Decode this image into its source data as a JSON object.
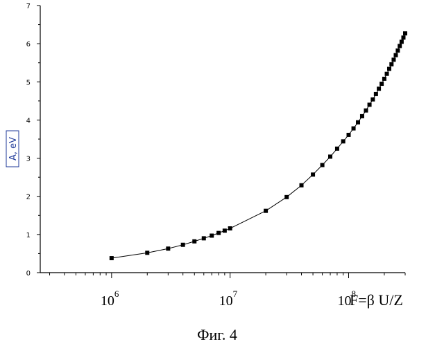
{
  "chart_data": {
    "type": "scatter",
    "xscale": "log",
    "xlim": [
      250000,
      300000000
    ],
    "ylim": [
      0,
      7
    ],
    "yticks": [
      0,
      1,
      2,
      3,
      4,
      5,
      6,
      7
    ],
    "ytick_labels": [
      "0",
      "1",
      "2",
      "3",
      "4",
      "5",
      "6",
      "7"
    ],
    "xticks": [
      {
        "value": 1000000,
        "base": "10",
        "exp": "6"
      },
      {
        "value": 10000000,
        "base": "10",
        "exp": "7"
      },
      {
        "value": 100000000,
        "base": "10",
        "exp": "8"
      }
    ],
    "ylabel": "A, eV",
    "xlabel": "F=β U/Z",
    "caption": "Фиг. 4",
    "grid": false,
    "series": [
      {
        "marker": "square",
        "line": true,
        "x": [
          1000000,
          2000000,
          3000000,
          4000000,
          5000000,
          6000000,
          7000000,
          8000000,
          9000000,
          10000000,
          20000000,
          30000000,
          40000000,
          50000000,
          60000000,
          70000000,
          80000000,
          90000000,
          100000000,
          110000000,
          120000000,
          130000000,
          140000000,
          150000000,
          160000000,
          170000000,
          180000000,
          190000000,
          200000000,
          210000000,
          220000000,
          230000000,
          240000000,
          250000000,
          260000000,
          270000000,
          280000000,
          290000000,
          300000000
        ],
        "y": [
          0.38,
          0.52,
          0.63,
          0.73,
          0.82,
          0.9,
          0.97,
          1.04,
          1.1,
          1.16,
          1.62,
          1.98,
          2.29,
          2.57,
          2.82,
          3.04,
          3.25,
          3.44,
          3.61,
          3.78,
          3.94,
          4.1,
          4.25,
          4.4,
          4.54,
          4.68,
          4.82,
          4.95,
          5.08,
          5.21,
          5.34,
          5.46,
          5.58,
          5.7,
          5.82,
          5.94,
          6.05,
          6.16,
          6.27
        ]
      }
    ]
  }
}
